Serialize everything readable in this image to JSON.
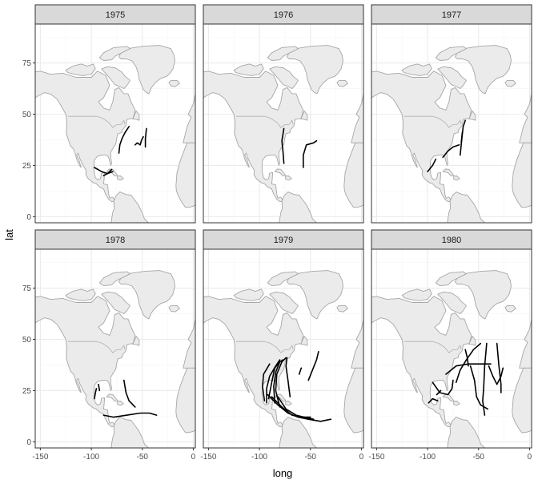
{
  "chart_data": {
    "type": "map-facets",
    "xlabel": "long",
    "ylabel": "lat",
    "xlim": [
      -155,
      2
    ],
    "ylim": [
      -3,
      94
    ],
    "x_ticks": [
      -150,
      -100,
      -50,
      0
    ],
    "x_tick_labels": [
      "-150",
      "-100",
      "-50",
      "0"
    ],
    "y_ticks": [
      0,
      25,
      50,
      75
    ],
    "y_tick_labels": [
      "0",
      "25",
      "50",
      "75"
    ],
    "grid": true,
    "colors": {
      "land_fill": "#ebebeb",
      "land_stroke": "#a6a6a6",
      "track": "#000000",
      "strip_fill": "#d9d9d9",
      "grid_major": "#ebebeb",
      "grid_minor": "#f5f5f5",
      "panel_border": "#333333"
    },
    "panels": [
      {
        "label": "1975",
        "tracks": [
          [
            [
              -73,
              31
            ],
            [
              -72,
              35
            ],
            [
              -70,
              38
            ],
            [
              -67,
              41
            ],
            [
              -63,
              44
            ]
          ],
          [
            [
              -57,
              35
            ],
            [
              -55,
              36
            ],
            [
              -52,
              35
            ],
            [
              -51,
              37
            ],
            [
              -49,
              39
            ]
          ],
          [
            [
              -47,
              34
            ],
            [
              -47,
              38
            ],
            [
              -46,
              43
            ]
          ],
          [
            [
              -97,
              24
            ],
            [
              -90,
              22
            ],
            [
              -84,
              21
            ],
            [
              -79,
              22
            ]
          ],
          [
            [
              -88,
              20
            ],
            [
              -84,
              21
            ],
            [
              -80,
              23
            ]
          ]
        ]
      },
      {
        "label": "1976",
        "tracks": [
          [
            [
              -76,
              26
            ],
            [
              -77,
              32
            ],
            [
              -78,
              37
            ],
            [
              -76,
              43
            ]
          ],
          [
            [
              -57,
              24
            ],
            [
              -57,
              30
            ],
            [
              -54,
              35
            ],
            [
              -47,
              36
            ],
            [
              -44,
              37
            ]
          ]
        ]
      },
      {
        "label": "1977",
        "tracks": [
          [
            [
              -100,
              22
            ],
            [
              -95,
              25
            ],
            [
              -92,
              28
            ]
          ],
          [
            [
              -85,
              29
            ],
            [
              -80,
              32
            ],
            [
              -75,
              34
            ],
            [
              -69,
              35
            ]
          ],
          [
            [
              -68,
              30
            ],
            [
              -67,
              35
            ],
            [
              -66,
              40
            ],
            [
              -65,
              44
            ],
            [
              -63,
              47
            ]
          ],
          [
            [
              -67,
              36
            ],
            [
              -66,
              41
            ]
          ]
        ]
      },
      {
        "label": "1978",
        "tracks": [
          [
            [
              -97,
              21
            ],
            [
              -96,
              24
            ],
            [
              -95,
              26
            ]
          ],
          [
            [
              -92,
              25
            ],
            [
              -93,
              28
            ]
          ],
          [
            [
              -68,
              30
            ],
            [
              -66,
              24
            ],
            [
              -63,
              20
            ],
            [
              -57,
              17
            ]
          ],
          [
            [
              -88,
              13
            ],
            [
              -78,
              12
            ],
            [
              -65,
              13
            ],
            [
              -52,
              14
            ],
            [
              -43,
              14
            ],
            [
              -36,
              13
            ]
          ]
        ]
      },
      {
        "label": "1979",
        "tracks": [
          [
            [
              -95,
              20
            ],
            [
              -97,
              27
            ],
            [
              -96,
              33
            ],
            [
              -90,
              38
            ]
          ],
          [
            [
              -93,
              19
            ],
            [
              -93,
              26
            ],
            [
              -90,
              32
            ],
            [
              -84,
              37
            ],
            [
              -80,
              40
            ]
          ],
          [
            [
              -91,
              21
            ],
            [
              -88,
              29
            ],
            [
              -85,
              36
            ],
            [
              -80,
              39
            ]
          ],
          [
            [
              -85,
              19
            ],
            [
              -86,
              27
            ],
            [
              -84,
              34
            ],
            [
              -80,
              39
            ],
            [
              -77,
              40
            ]
          ],
          [
            [
              -80,
              17
            ],
            [
              -84,
              25
            ],
            [
              -83,
              33
            ],
            [
              -78,
              39
            ],
            [
              -74,
              41
            ]
          ],
          [
            [
              -70,
              22
            ],
            [
              -72,
              30
            ],
            [
              -74,
              37
            ],
            [
              -73,
              41
            ]
          ],
          [
            [
              -92,
              23
            ],
            [
              -82,
              18
            ],
            [
              -72,
              14
            ],
            [
              -62,
              12
            ],
            [
              -52,
              11
            ],
            [
              -40,
              10
            ],
            [
              -30,
              11
            ]
          ],
          [
            [
              -88,
              22
            ],
            [
              -78,
              17
            ],
            [
              -68,
              13
            ],
            [
              -58,
              12
            ],
            [
              -50,
              12
            ]
          ],
          [
            [
              -82,
              22
            ],
            [
              -74,
              16
            ],
            [
              -64,
              13
            ],
            [
              -56,
              12
            ],
            [
              -47,
              11
            ]
          ],
          [
            [
              -52,
              30
            ],
            [
              -48,
              35
            ],
            [
              -44,
              40
            ],
            [
              -42,
              44
            ]
          ],
          [
            [
              -61,
              33
            ],
            [
              -59,
              36
            ]
          ]
        ]
      },
      {
        "label": "1980",
        "tracks": [
          [
            [
              -95,
              29
            ],
            [
              -88,
              24
            ],
            [
              -80,
              23
            ],
            [
              -76,
              26
            ],
            [
              -75,
              30
            ]
          ],
          [
            [
              -99,
              19
            ],
            [
              -95,
              21
            ],
            [
              -90,
              20
            ]
          ],
          [
            [
              -82,
              33
            ],
            [
              -72,
              37
            ],
            [
              -60,
              38
            ],
            [
              -48,
              38
            ],
            [
              -38,
              38
            ]
          ],
          [
            [
              -72,
              29
            ],
            [
              -68,
              35
            ],
            [
              -62,
              40
            ],
            [
              -55,
              45
            ],
            [
              -48,
              48
            ]
          ],
          [
            [
              -58,
              37
            ],
            [
              -54,
              30
            ],
            [
              -52,
              22
            ],
            [
              -48,
              18
            ],
            [
              -41,
              16
            ]
          ],
          [
            [
              -42,
              48
            ],
            [
              -44,
              37
            ],
            [
              -45,
              26
            ],
            [
              -46,
              20
            ],
            [
              -44,
              13
            ]
          ],
          [
            [
              -40,
              37
            ],
            [
              -36,
              32
            ],
            [
              -32,
              28
            ],
            [
              -28,
              32
            ],
            [
              -26,
              36
            ]
          ],
          [
            [
              -32,
              48
            ],
            [
              -30,
              37
            ],
            [
              -28,
              28
            ],
            [
              -28,
              24
            ]
          ],
          [
            [
              -63,
              45
            ],
            [
              -61,
              41
            ],
            [
              -60,
              37
            ]
          ],
          [
            [
              -91,
              23
            ],
            [
              -89,
              24
            ],
            [
              -87,
              25
            ]
          ]
        ]
      }
    ]
  }
}
